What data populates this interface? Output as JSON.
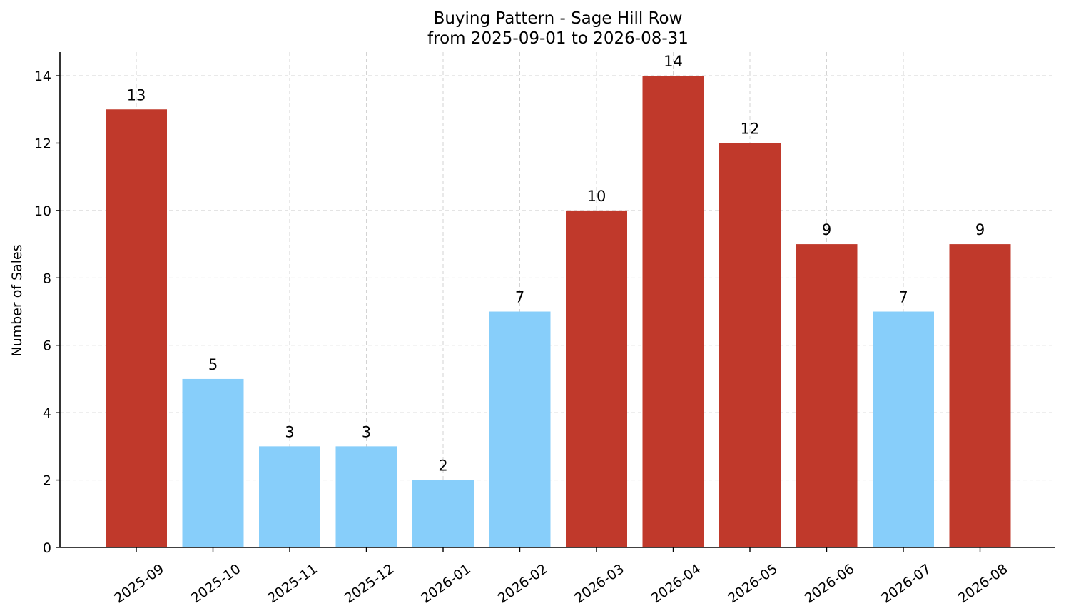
{
  "chart_data": {
    "type": "bar",
    "title": "Buying Pattern - Sage Hill Row",
    "subtitle": "from 2025-09-01 to 2026-08-31",
    "xlabel": "",
    "ylabel": "Number of Sales",
    "categories": [
      "2025-09",
      "2025-10",
      "2025-11",
      "2025-12",
      "2026-01",
      "2026-02",
      "2026-03",
      "2026-04",
      "2026-05",
      "2026-06",
      "2026-07",
      "2026-08"
    ],
    "values": [
      13,
      5,
      3,
      3,
      2,
      7,
      10,
      14,
      12,
      9,
      7,
      9
    ],
    "ylim": [
      0,
      14.7
    ],
    "yticks": [
      0,
      2,
      4,
      6,
      8,
      10,
      12,
      14
    ],
    "grid": true,
    "data_labels": true,
    "colors": {
      "high": "#c0392b",
      "low": "#87cefa"
    },
    "threshold": 8
  }
}
